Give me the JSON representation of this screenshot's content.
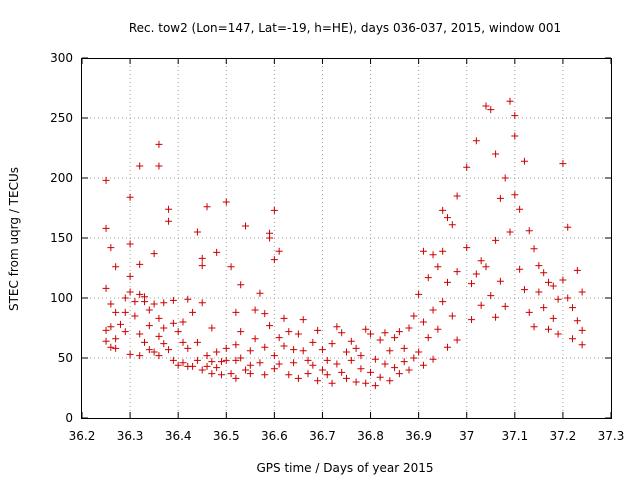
{
  "chart_data": {
    "type": "scatter",
    "title": "Rec. tow2 (Lon=147, Lat=-19, h=HE), days 036-037, 2015, window 001",
    "xlabel": "GPS time / Days of year 2015",
    "ylabel": "STEC from uqrg / TECUs",
    "xlim": [
      36.2,
      37.3
    ],
    "ylim": [
      0,
      300
    ],
    "xticks": [
      "36.2",
      "36.3",
      "36.4",
      "36.5",
      "36.6",
      "36.7",
      "36.8",
      "36.9",
      "37",
      "37.1",
      "37.2",
      "37.3"
    ],
    "yticks": [
      "0",
      "50",
      "100",
      "150",
      "200",
      "250",
      "300"
    ],
    "grid": true,
    "legend": "none",
    "series": [
      {
        "name": "STEC",
        "color": "#cc0000",
        "marker": "plus",
        "points": [
          [
            36.25,
            198
          ],
          [
            36.25,
            158
          ],
          [
            36.26,
            142
          ],
          [
            36.27,
            126
          ],
          [
            36.25,
            108
          ],
          [
            36.26,
            95
          ],
          [
            36.27,
            88
          ],
          [
            36.28,
            78
          ],
          [
            36.25,
            73
          ],
          [
            36.26,
            76
          ],
          [
            36.27,
            66
          ],
          [
            36.25,
            64
          ],
          [
            36.26,
            59
          ],
          [
            36.27,
            58
          ],
          [
            36.29,
            100
          ],
          [
            36.29,
            88
          ],
          [
            36.29,
            72
          ],
          [
            36.3,
            105
          ],
          [
            36.3,
            184
          ],
          [
            36.3,
            145
          ],
          [
            36.3,
            118
          ],
          [
            36.3,
            53
          ],
          [
            36.31,
            97
          ],
          [
            36.31,
            85
          ],
          [
            36.32,
            210
          ],
          [
            36.32,
            128
          ],
          [
            36.32,
            103
          ],
          [
            36.32,
            70
          ],
          [
            36.32,
            52
          ],
          [
            36.33,
            101
          ],
          [
            36.33,
            97
          ],
          [
            36.33,
            63
          ],
          [
            36.34,
            90
          ],
          [
            36.34,
            77
          ],
          [
            36.34,
            57
          ],
          [
            36.35,
            137
          ],
          [
            36.35,
            95
          ],
          [
            36.35,
            55
          ],
          [
            36.36,
            228
          ],
          [
            36.36,
            210
          ],
          [
            36.36,
            83
          ],
          [
            36.36,
            68
          ],
          [
            36.36,
            52
          ],
          [
            36.37,
            96
          ],
          [
            36.37,
            75
          ],
          [
            36.37,
            62
          ],
          [
            36.38,
            174
          ],
          [
            36.38,
            164
          ],
          [
            36.38,
            57
          ],
          [
            36.39,
            98
          ],
          [
            36.39,
            79
          ],
          [
            36.39,
            48
          ],
          [
            36.4,
            72
          ],
          [
            36.4,
            44
          ],
          [
            36.41,
            80
          ],
          [
            36.41,
            63
          ],
          [
            36.41,
            46
          ],
          [
            36.42,
            99
          ],
          [
            36.42,
            58
          ],
          [
            36.42,
            43
          ],
          [
            36.43,
            88
          ],
          [
            36.43,
            43
          ],
          [
            36.44,
            155
          ],
          [
            36.44,
            63
          ],
          [
            36.44,
            48
          ],
          [
            36.45,
            133
          ],
          [
            36.45,
            127
          ],
          [
            36.45,
            96
          ],
          [
            36.45,
            40
          ],
          [
            36.46,
            176
          ],
          [
            36.46,
            52
          ],
          [
            36.46,
            43
          ],
          [
            36.47,
            75
          ],
          [
            36.47,
            47
          ],
          [
            36.47,
            37
          ],
          [
            36.48,
            138
          ],
          [
            36.48,
            55
          ],
          [
            36.48,
            42
          ],
          [
            36.49,
            47
          ],
          [
            36.49,
            36
          ],
          [
            36.5,
            180
          ],
          [
            36.5,
            58
          ],
          [
            36.5,
            48
          ],
          [
            36.51,
            126
          ],
          [
            36.51,
            37
          ],
          [
            36.52,
            88
          ],
          [
            36.52,
            61
          ],
          [
            36.52,
            48
          ],
          [
            36.52,
            33
          ],
          [
            36.53,
            111
          ],
          [
            36.53,
            72
          ],
          [
            36.53,
            50
          ],
          [
            36.54,
            160
          ],
          [
            36.54,
            40
          ],
          [
            36.55,
            56
          ],
          [
            36.55,
            44
          ],
          [
            36.55,
            37
          ],
          [
            36.56,
            90
          ],
          [
            36.56,
            66
          ],
          [
            36.57,
            104
          ],
          [
            36.57,
            46
          ],
          [
            36.58,
            87
          ],
          [
            36.58,
            59
          ],
          [
            36.58,
            36
          ],
          [
            36.59,
            154
          ],
          [
            36.59,
            150
          ],
          [
            36.59,
            77
          ],
          [
            36.6,
            173
          ],
          [
            36.6,
            132
          ],
          [
            36.6,
            52
          ],
          [
            36.6,
            41
          ],
          [
            36.61,
            139
          ],
          [
            36.61,
            67
          ],
          [
            36.61,
            45
          ],
          [
            36.62,
            83
          ],
          [
            36.62,
            60
          ],
          [
            36.63,
            72
          ],
          [
            36.63,
            36
          ],
          [
            36.64,
            57
          ],
          [
            36.64,
            46
          ],
          [
            36.65,
            70
          ],
          [
            36.65,
            33
          ],
          [
            36.66,
            82
          ],
          [
            36.66,
            56
          ],
          [
            36.67,
            48
          ],
          [
            36.67,
            37
          ],
          [
            36.68,
            63
          ],
          [
            36.68,
            44
          ],
          [
            36.69,
            73
          ],
          [
            36.69,
            31
          ],
          [
            36.7,
            57
          ],
          [
            36.7,
            40
          ],
          [
            36.71,
            48
          ],
          [
            36.71,
            36
          ],
          [
            36.72,
            62
          ],
          [
            36.72,
            29
          ],
          [
            36.73,
            76
          ],
          [
            36.73,
            45
          ],
          [
            36.74,
            71
          ],
          [
            36.74,
            38
          ],
          [
            36.75,
            55
          ],
          [
            36.75,
            33
          ],
          [
            36.76,
            64
          ],
          [
            36.76,
            48
          ],
          [
            36.77,
            58
          ],
          [
            36.77,
            30
          ],
          [
            36.78,
            52
          ],
          [
            36.78,
            41
          ],
          [
            36.79,
            74
          ],
          [
            36.79,
            29
          ],
          [
            36.8,
            70
          ],
          [
            36.8,
            38
          ],
          [
            36.81,
            49
          ],
          [
            36.81,
            27
          ],
          [
            36.82,
            65
          ],
          [
            36.82,
            34
          ],
          [
            36.83,
            71
          ],
          [
            36.83,
            45
          ],
          [
            36.84,
            56
          ],
          [
            36.84,
            31
          ],
          [
            36.85,
            67
          ],
          [
            36.85,
            42
          ],
          [
            36.86,
            72
          ],
          [
            36.86,
            37
          ],
          [
            36.87,
            58
          ],
          [
            36.87,
            47
          ],
          [
            36.88,
            75
          ],
          [
            36.88,
            40
          ],
          [
            36.89,
            85
          ],
          [
            36.89,
            50
          ],
          [
            36.9,
            103
          ],
          [
            36.9,
            55
          ],
          [
            36.91,
            139
          ],
          [
            36.91,
            80
          ],
          [
            36.91,
            44
          ],
          [
            36.92,
            117
          ],
          [
            36.92,
            67
          ],
          [
            36.93,
            136
          ],
          [
            36.93,
            90
          ],
          [
            36.93,
            49
          ],
          [
            36.94,
            126
          ],
          [
            36.94,
            74
          ],
          [
            36.95,
            173
          ],
          [
            36.95,
            139
          ],
          [
            36.95,
            97
          ],
          [
            36.96,
            167
          ],
          [
            36.96,
            113
          ],
          [
            36.96,
            59
          ],
          [
            36.97,
            161
          ],
          [
            36.97,
            85
          ],
          [
            36.98,
            185
          ],
          [
            36.98,
            122
          ],
          [
            36.98,
            65
          ],
          [
            37.0,
            209
          ],
          [
            37.0,
            142
          ],
          [
            37.01,
            112
          ],
          [
            37.01,
            82
          ],
          [
            37.02,
            231
          ],
          [
            37.02,
            120
          ],
          [
            37.03,
            131
          ],
          [
            37.03,
            94
          ],
          [
            37.04,
            260
          ],
          [
            37.04,
            126
          ],
          [
            37.05,
            257
          ],
          [
            37.05,
            102
          ],
          [
            37.06,
            220
          ],
          [
            37.06,
            148
          ],
          [
            37.06,
            84
          ],
          [
            37.07,
            183
          ],
          [
            37.07,
            114
          ],
          [
            37.08,
            200
          ],
          [
            37.08,
            93
          ],
          [
            37.09,
            264
          ],
          [
            37.09,
            155
          ],
          [
            37.1,
            252
          ],
          [
            37.1,
            186
          ],
          [
            37.1,
            235
          ],
          [
            37.11,
            174
          ],
          [
            37.11,
            124
          ],
          [
            37.12,
            214
          ],
          [
            37.12,
            107
          ],
          [
            37.13,
            156
          ],
          [
            37.13,
            88
          ],
          [
            37.14,
            141
          ],
          [
            37.14,
            76
          ],
          [
            37.15,
            127
          ],
          [
            37.15,
            105
          ],
          [
            37.16,
            121
          ],
          [
            37.16,
            92
          ],
          [
            37.17,
            113
          ],
          [
            37.17,
            74
          ],
          [
            37.18,
            110
          ],
          [
            37.18,
            83
          ],
          [
            37.19,
            99
          ],
          [
            37.19,
            70
          ],
          [
            37.2,
            212
          ],
          [
            37.2,
            115
          ],
          [
            37.21,
            159
          ],
          [
            37.21,
            100
          ],
          [
            37.22,
            92
          ],
          [
            37.22,
            66
          ],
          [
            37.23,
            123
          ],
          [
            37.23,
            81
          ],
          [
            37.24,
            105
          ],
          [
            37.24,
            73
          ],
          [
            37.24,
            61
          ]
        ]
      }
    ]
  }
}
